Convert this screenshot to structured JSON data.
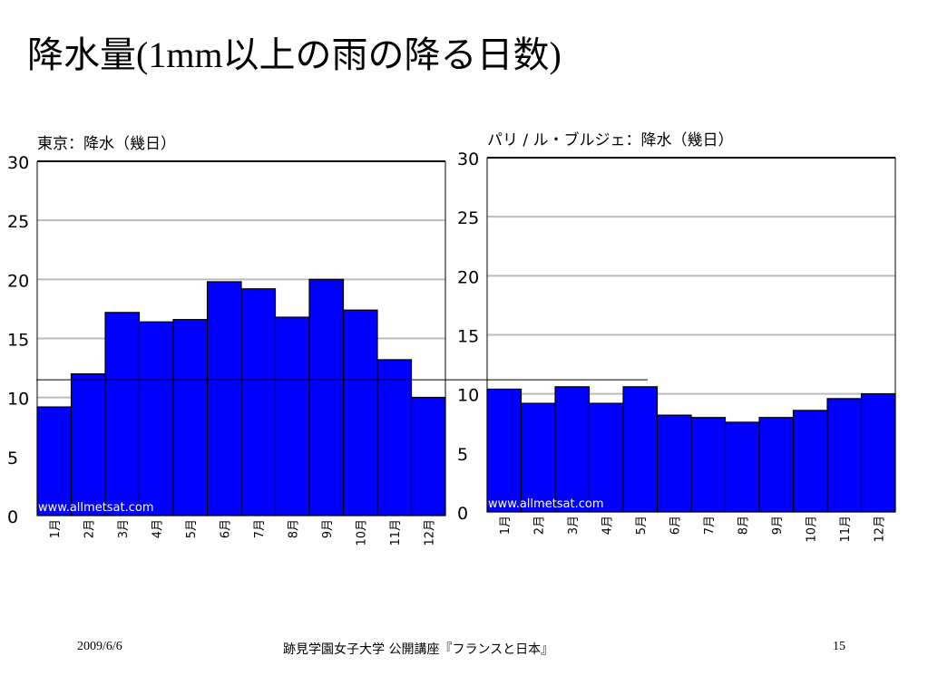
{
  "slide": {
    "title_a": "降水量",
    "title_b": "(1mm",
    "title_c": "以上の雨の降る日数",
    "title_d": ")",
    "date": "2009/6/6",
    "footer": "跡見学園女子大学 公開講座『フランスと日本』",
    "page": "15"
  },
  "colors": {
    "bar": "#0000ff",
    "edge": "#000000",
    "grid": "#bbbbbb",
    "ref_line": "#000000"
  },
  "reference_line_value": 11.5,
  "chart_data": [
    {
      "type": "bar",
      "title": "東京：降水（幾日）",
      "watermark": "www.allmetsat.com",
      "categories": [
        "1月",
        "2月",
        "3月",
        "4月",
        "5月",
        "6月",
        "7月",
        "8月",
        "9月",
        "10月",
        "11月",
        "12月"
      ],
      "values": [
        9.2,
        12.0,
        17.2,
        16.4,
        16.6,
        19.8,
        19.2,
        16.8,
        20.0,
        17.4,
        13.2,
        10.0
      ],
      "yticks": [
        0,
        5,
        10,
        15,
        20,
        25,
        30
      ],
      "ylim": [
        0,
        30
      ],
      "grid": true
    },
    {
      "type": "bar",
      "title": "パリ / ル・ブルジェ：降水（幾日）",
      "watermark": "www.allmetsat.com",
      "categories": [
        "1月",
        "2月",
        "3月",
        "4月",
        "5月",
        "6月",
        "7月",
        "8月",
        "9月",
        "10月",
        "11月",
        "12月"
      ],
      "values": [
        10.4,
        9.2,
        10.6,
        9.2,
        10.6,
        8.2,
        8.0,
        7.6,
        8.0,
        8.6,
        9.6,
        10.0
      ],
      "yticks": [
        0,
        5,
        10,
        15,
        20,
        25,
        30
      ],
      "ylim": [
        0,
        30
      ],
      "grid": true
    }
  ]
}
